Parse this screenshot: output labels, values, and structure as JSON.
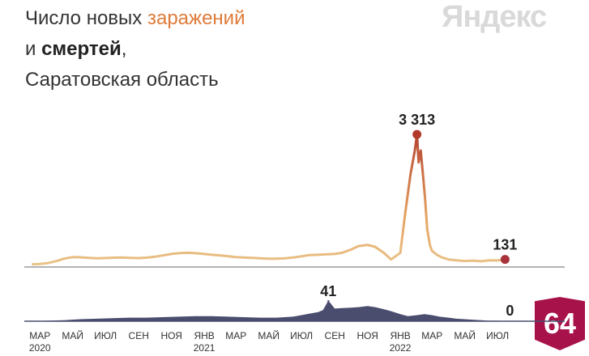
{
  "header": {
    "line1_prefix": "Число новых ",
    "line1_accent": "заражений",
    "line2_prefix": "и ",
    "line2_bold": "смертей",
    "line2_suffix": ",",
    "line3": "Саратовская область"
  },
  "brand": "Яндекс",
  "region_badge": "64",
  "chart_data": [
    {
      "type": "line",
      "title": "Число новых заражений",
      "x": [
        "2020-02-15",
        "2020-03-01",
        "2020-03-15",
        "2020-04-01",
        "2020-04-15",
        "2020-05-01",
        "2020-05-15",
        "2020-06-01",
        "2020-06-15",
        "2020-07-01",
        "2020-07-15",
        "2020-08-01",
        "2020-08-15",
        "2020-09-01",
        "2020-09-15",
        "2020-10-01",
        "2020-10-15",
        "2020-11-01",
        "2020-11-15",
        "2020-12-01",
        "2020-12-15",
        "2021-01-01",
        "2021-01-15",
        "2021-02-01",
        "2021-02-15",
        "2021-03-01",
        "2021-03-15",
        "2021-04-01",
        "2021-04-15",
        "2021-05-01",
        "2021-05-15",
        "2021-06-01",
        "2021-06-15",
        "2021-07-01",
        "2021-07-15",
        "2021-08-01",
        "2021-08-15",
        "2021-09-01",
        "2021-09-15",
        "2021-10-01",
        "2021-10-15",
        "2021-11-01",
        "2021-11-15",
        "2021-12-01",
        "2021-12-15",
        "2022-01-01",
        "2022-01-10",
        "2022-01-20",
        "2022-01-28",
        "2022-02-01",
        "2022-02-04",
        "2022-02-08",
        "2022-02-12",
        "2022-02-16",
        "2022-02-20",
        "2022-02-25",
        "2022-03-01",
        "2022-03-10",
        "2022-03-20",
        "2022-04-01",
        "2022-04-15",
        "2022-05-01",
        "2022-05-15",
        "2022-06-01",
        "2022-06-15",
        "2022-07-01",
        "2022-07-15"
      ],
      "values": [
        5,
        15,
        35,
        90,
        150,
        190,
        185,
        170,
        160,
        165,
        175,
        180,
        170,
        165,
        175,
        200,
        230,
        270,
        290,
        300,
        290,
        270,
        250,
        230,
        210,
        190,
        180,
        170,
        160,
        150,
        150,
        160,
        180,
        210,
        240,
        250,
        260,
        270,
        300,
        380,
        470,
        500,
        450,
        300,
        130,
        300,
        1300,
        2300,
        2900,
        3313,
        2600,
        2900,
        2300,
        1700,
        900,
        500,
        350,
        250,
        180,
        130,
        110,
        90,
        100,
        85,
        110,
        105,
        131
      ],
      "ylim": [
        0,
        3500
      ],
      "markers": [
        {
          "x": "2022-02-01",
          "value": 3313,
          "label": "3 313"
        },
        {
          "x": "2022-07-15",
          "value": 131,
          "label": "131"
        }
      ],
      "color_low": "#e9c489",
      "color_high": "#b03a2a"
    },
    {
      "type": "area",
      "title": "смертей",
      "x": [
        "2020-02-15",
        "2020-03-15",
        "2020-04-15",
        "2020-05-15",
        "2020-06-15",
        "2020-07-15",
        "2020-08-15",
        "2020-09-15",
        "2020-10-15",
        "2020-11-15",
        "2020-12-15",
        "2021-01-15",
        "2021-02-15",
        "2021-03-15",
        "2021-04-15",
        "2021-05-15",
        "2021-06-15",
        "2021-07-01",
        "2021-07-15",
        "2021-08-01",
        "2021-08-10",
        "2021-08-20",
        "2021-09-01",
        "2021-09-15",
        "2021-10-01",
        "2021-10-15",
        "2021-11-01",
        "2021-11-15",
        "2021-12-01",
        "2021-12-15",
        "2022-01-01",
        "2022-01-15",
        "2022-02-01",
        "2022-02-15",
        "2022-03-01",
        "2022-03-15",
        "2022-04-01",
        "2022-04-15",
        "2022-05-01",
        "2022-05-15",
        "2022-06-01",
        "2022-06-15",
        "2022-07-01",
        "2022-07-15"
      ],
      "values": [
        0,
        1,
        2,
        4,
        5,
        6,
        7,
        7,
        8,
        9,
        10,
        10,
        9,
        8,
        7,
        7,
        9,
        12,
        15,
        18,
        22,
        41,
        25,
        26,
        27,
        28,
        30,
        28,
        24,
        20,
        14,
        10,
        12,
        14,
        12,
        9,
        7,
        5,
        4,
        3,
        2,
        1,
        1,
        0
      ],
      "ylim": [
        0,
        45
      ],
      "markers": [
        {
          "x": "2021-08-20",
          "value": 41,
          "label": "41"
        },
        {
          "x": "2022-07-15",
          "value": 0,
          "label": "0"
        }
      ],
      "color": "#4a4d6e"
    }
  ],
  "x_axis": {
    "start": "2020-02-01",
    "ticks": [
      {
        "date": "2020-03-01",
        "label": "МАР",
        "year": "2020"
      },
      {
        "date": "2020-05-01",
        "label": "МАЙ",
        "year": ""
      },
      {
        "date": "2020-07-01",
        "label": "ИЮЛ",
        "year": ""
      },
      {
        "date": "2020-09-01",
        "label": "СЕН",
        "year": ""
      },
      {
        "date": "2020-11-01",
        "label": "НОЯ",
        "year": ""
      },
      {
        "date": "2021-01-01",
        "label": "ЯНВ",
        "year": "2021"
      },
      {
        "date": "2021-03-01",
        "label": "МАР",
        "year": ""
      },
      {
        "date": "2021-05-01",
        "label": "МАЙ",
        "year": ""
      },
      {
        "date": "2021-07-01",
        "label": "ИЮЛ",
        "year": ""
      },
      {
        "date": "2021-09-01",
        "label": "СЕН",
        "year": ""
      },
      {
        "date": "2021-11-01",
        "label": "НОЯ",
        "year": ""
      },
      {
        "date": "2022-01-01",
        "label": "ЯНВ",
        "year": "2022"
      },
      {
        "date": "2022-03-01",
        "label": "МАР",
        "year": ""
      },
      {
        "date": "2022-05-01",
        "label": "МАЙ",
        "year": ""
      },
      {
        "date": "2022-07-01",
        "label": "ИЮЛ",
        "year": ""
      }
    ]
  }
}
